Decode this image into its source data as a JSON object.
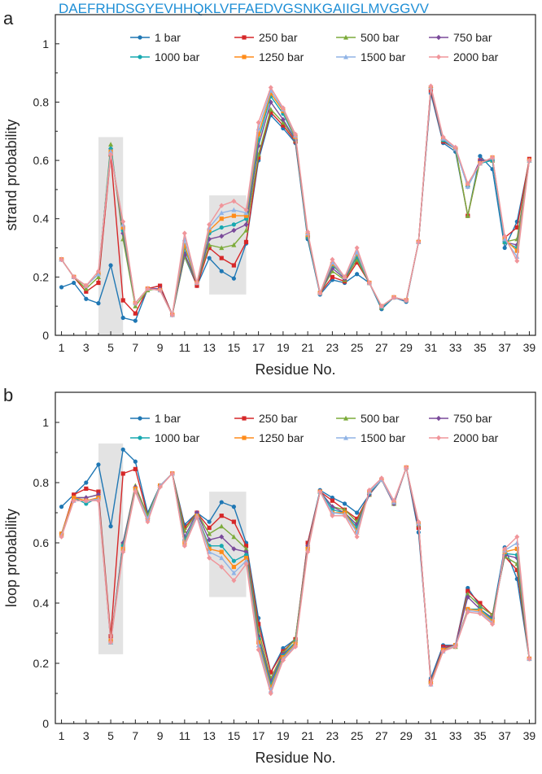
{
  "sequence": "DAEFRHDSGYEVHHQKLVFFAEDVGSNKGAIIGLMVGGVV",
  "colors": {
    "1 bar": "#1f77b4",
    "250 bar": "#d62728",
    "500 bar": "#7cab3a",
    "750 bar": "#7a4a9a",
    "1000 bar": "#17a9b0",
    "1250 bar": "#ff8c1a",
    "1500 bar": "#90b4e6",
    "2000 bar": "#f0959a"
  },
  "chart_data": [
    {
      "panel_label": "a",
      "type": "line",
      "ylabel": "strand probability",
      "xlabel": "Residue No.",
      "ylim": [
        0,
        1.1
      ],
      "yticks": [
        "0",
        "0.2",
        "0.4",
        "0.6",
        "0.8",
        "1"
      ],
      "yticks_values": [
        0,
        0.2,
        0.4,
        0.6,
        0.8,
        1.0
      ],
      "xticks": [
        "1",
        "3",
        "5",
        "7",
        "9",
        "11",
        "13",
        "15",
        "17",
        "19",
        "21",
        "23",
        "25",
        "27",
        "29",
        "31",
        "33",
        "35",
        "37",
        "39"
      ],
      "highlight_ranges": [
        {
          "x": [
            4,
            6
          ],
          "y": [
            0,
            0.68
          ]
        },
        {
          "x": [
            13,
            16
          ],
          "y": [
            0.14,
            0.48
          ]
        }
      ],
      "x": [
        1,
        2,
        3,
        4,
        5,
        6,
        7,
        8,
        9,
        10,
        11,
        12,
        13,
        14,
        15,
        16,
        17,
        18,
        19,
        20,
        21,
        22,
        23,
        24,
        25,
        26,
        27,
        28,
        29,
        30,
        31,
        32,
        33,
        34,
        35,
        36,
        37,
        38,
        39
      ],
      "series": [
        {
          "name": "1 bar",
          "values": [
            0.165,
            0.18,
            0.125,
            0.11,
            0.24,
            0.06,
            0.05,
            0.16,
            0.17,
            0.07,
            0.27,
            0.17,
            0.265,
            0.22,
            0.195,
            0.315,
            0.6,
            0.755,
            0.71,
            0.66,
            0.33,
            0.14,
            0.19,
            0.18,
            0.21,
            0.18,
            0.09,
            0.13,
            0.115,
            0.32,
            0.83,
            0.66,
            0.63,
            0.41,
            0.615,
            0.57,
            0.3,
            0.39,
            0.6
          ]
        },
        {
          "name": "250 bar",
          "values": [
            0.26,
            0.2,
            0.15,
            0.18,
            0.62,
            0.12,
            0.075,
            0.16,
            0.17,
            0.07,
            0.28,
            0.17,
            0.3,
            0.265,
            0.24,
            0.32,
            0.61,
            0.765,
            0.72,
            0.665,
            0.34,
            0.145,
            0.2,
            0.185,
            0.25,
            0.18,
            0.095,
            0.13,
            0.12,
            0.32,
            0.84,
            0.665,
            0.64,
            0.41,
            0.6,
            0.6,
            0.335,
            0.37,
            0.605
          ]
        },
        {
          "name": "500 bar",
          "values": [
            0.26,
            0.2,
            0.16,
            0.2,
            0.655,
            0.33,
            0.1,
            0.155,
            0.16,
            0.07,
            0.27,
            0.18,
            0.31,
            0.3,
            0.31,
            0.36,
            0.62,
            0.775,
            0.73,
            0.67,
            0.34,
            0.145,
            0.22,
            0.19,
            0.26,
            0.18,
            0.095,
            0.13,
            0.12,
            0.32,
            0.85,
            0.67,
            0.64,
            0.41,
            0.6,
            0.6,
            0.32,
            0.33,
            0.6
          ]
        },
        {
          "name": "750 bar",
          "values": [
            0.26,
            0.2,
            0.17,
            0.21,
            0.64,
            0.35,
            0.11,
            0.16,
            0.16,
            0.07,
            0.28,
            0.18,
            0.33,
            0.34,
            0.36,
            0.38,
            0.65,
            0.8,
            0.74,
            0.67,
            0.34,
            0.145,
            0.23,
            0.195,
            0.27,
            0.18,
            0.095,
            0.13,
            0.12,
            0.32,
            0.85,
            0.67,
            0.64,
            0.51,
            0.6,
            0.6,
            0.32,
            0.31,
            0.6
          ]
        },
        {
          "name": "1000 bar",
          "values": [
            0.26,
            0.2,
            0.17,
            0.21,
            0.64,
            0.36,
            0.11,
            0.16,
            0.155,
            0.07,
            0.3,
            0.18,
            0.35,
            0.37,
            0.38,
            0.4,
            0.67,
            0.82,
            0.76,
            0.675,
            0.34,
            0.145,
            0.24,
            0.2,
            0.27,
            0.18,
            0.095,
            0.13,
            0.12,
            0.32,
            0.85,
            0.67,
            0.64,
            0.51,
            0.59,
            0.6,
            0.32,
            0.3,
            0.6
          ]
        },
        {
          "name": "1250 bar",
          "values": [
            0.26,
            0.2,
            0.17,
            0.21,
            0.63,
            0.37,
            0.11,
            0.16,
            0.155,
            0.07,
            0.31,
            0.18,
            0.36,
            0.4,
            0.41,
            0.41,
            0.69,
            0.83,
            0.77,
            0.68,
            0.345,
            0.145,
            0.245,
            0.2,
            0.28,
            0.18,
            0.1,
            0.13,
            0.12,
            0.32,
            0.85,
            0.675,
            0.64,
            0.52,
            0.59,
            0.61,
            0.33,
            0.29,
            0.6
          ]
        },
        {
          "name": "1500 bar",
          "values": [
            0.26,
            0.2,
            0.17,
            0.21,
            0.63,
            0.38,
            0.11,
            0.16,
            0.155,
            0.07,
            0.33,
            0.18,
            0.37,
            0.42,
            0.43,
            0.42,
            0.71,
            0.84,
            0.775,
            0.685,
            0.35,
            0.145,
            0.25,
            0.2,
            0.285,
            0.18,
            0.1,
            0.13,
            0.12,
            0.32,
            0.85,
            0.675,
            0.64,
            0.51,
            0.59,
            0.61,
            0.33,
            0.27,
            0.6
          ]
        },
        {
          "name": "2000 bar",
          "values": [
            0.26,
            0.2,
            0.17,
            0.22,
            0.62,
            0.39,
            0.11,
            0.16,
            0.155,
            0.07,
            0.35,
            0.18,
            0.38,
            0.445,
            0.46,
            0.43,
            0.73,
            0.85,
            0.78,
            0.69,
            0.355,
            0.145,
            0.26,
            0.2,
            0.3,
            0.18,
            0.1,
            0.13,
            0.12,
            0.32,
            0.855,
            0.68,
            0.645,
            0.52,
            0.59,
            0.61,
            0.34,
            0.255,
            0.6
          ]
        }
      ]
    },
    {
      "panel_label": "b",
      "type": "line",
      "ylabel": "loop probability",
      "xlabel": "Residue No.",
      "ylim": [
        0,
        1.1
      ],
      "yticks": [
        "0",
        "0.2",
        "0.4",
        "0.6",
        "0.8",
        "1"
      ],
      "yticks_values": [
        0,
        0.2,
        0.4,
        0.6,
        0.8,
        1.0
      ],
      "xticks": [
        "1",
        "3",
        "5",
        "7",
        "9",
        "11",
        "13",
        "15",
        "17",
        "19",
        "21",
        "23",
        "25",
        "27",
        "29",
        "31",
        "33",
        "35",
        "37",
        "39"
      ],
      "highlight_ranges": [
        {
          "x": [
            4,
            6
          ],
          "y": [
            0.23,
            0.93
          ]
        },
        {
          "x": [
            13,
            16
          ],
          "y": [
            0.42,
            0.77
          ]
        }
      ],
      "x": [
        1,
        2,
        3,
        4,
        5,
        6,
        7,
        8,
        9,
        10,
        11,
        12,
        13,
        14,
        15,
        16,
        17,
        18,
        19,
        20,
        21,
        22,
        23,
        24,
        25,
        26,
        27,
        28,
        29,
        30,
        31,
        32,
        33,
        34,
        35,
        36,
        37,
        38,
        39
      ],
      "series": [
        {
          "name": "1 bar",
          "values": [
            0.72,
            0.76,
            0.8,
            0.86,
            0.655,
            0.91,
            0.87,
            0.7,
            0.79,
            0.83,
            0.66,
            0.7,
            0.67,
            0.735,
            0.72,
            0.6,
            0.35,
            0.17,
            0.25,
            0.28,
            0.6,
            0.775,
            0.75,
            0.73,
            0.7,
            0.76,
            0.81,
            0.73,
            0.85,
            0.635,
            0.15,
            0.26,
            0.26,
            0.45,
            0.39,
            0.36,
            0.585,
            0.48,
            0.215
          ]
        },
        {
          "name": "250 bar",
          "values": [
            0.63,
            0.76,
            0.78,
            0.77,
            0.29,
            0.83,
            0.845,
            0.69,
            0.79,
            0.83,
            0.65,
            0.7,
            0.65,
            0.69,
            0.67,
            0.59,
            0.33,
            0.17,
            0.24,
            0.28,
            0.6,
            0.77,
            0.74,
            0.71,
            0.68,
            0.76,
            0.81,
            0.73,
            0.85,
            0.65,
            0.14,
            0.255,
            0.26,
            0.44,
            0.4,
            0.36,
            0.555,
            0.51,
            0.215
          ]
        },
        {
          "name": "500 bar",
          "values": [
            0.63,
            0.75,
            0.75,
            0.76,
            0.27,
            0.6,
            0.79,
            0.69,
            0.79,
            0.83,
            0.64,
            0.7,
            0.63,
            0.655,
            0.62,
            0.58,
            0.31,
            0.15,
            0.235,
            0.28,
            0.59,
            0.77,
            0.72,
            0.71,
            0.67,
            0.76,
            0.81,
            0.73,
            0.85,
            0.66,
            0.14,
            0.25,
            0.255,
            0.43,
            0.39,
            0.36,
            0.555,
            0.53,
            0.215
          ]
        },
        {
          "name": "750 bar",
          "values": [
            0.63,
            0.75,
            0.75,
            0.76,
            0.275,
            0.6,
            0.785,
            0.68,
            0.79,
            0.83,
            0.62,
            0.7,
            0.61,
            0.62,
            0.58,
            0.57,
            0.29,
            0.14,
            0.23,
            0.27,
            0.59,
            0.77,
            0.72,
            0.7,
            0.66,
            0.76,
            0.81,
            0.73,
            0.85,
            0.66,
            0.14,
            0.25,
            0.26,
            0.42,
            0.38,
            0.35,
            0.56,
            0.55,
            0.215
          ]
        },
        {
          "name": "1000 bar",
          "values": [
            0.63,
            0.75,
            0.73,
            0.75,
            0.27,
            0.59,
            0.78,
            0.68,
            0.79,
            0.83,
            0.61,
            0.69,
            0.59,
            0.59,
            0.54,
            0.56,
            0.28,
            0.13,
            0.225,
            0.27,
            0.58,
            0.77,
            0.71,
            0.7,
            0.65,
            0.765,
            0.81,
            0.735,
            0.85,
            0.665,
            0.135,
            0.245,
            0.26,
            0.38,
            0.38,
            0.345,
            0.565,
            0.56,
            0.215
          ]
        },
        {
          "name": "1250 bar",
          "values": [
            0.63,
            0.75,
            0.74,
            0.75,
            0.275,
            0.58,
            0.78,
            0.68,
            0.79,
            0.83,
            0.6,
            0.69,
            0.58,
            0.57,
            0.52,
            0.55,
            0.27,
            0.12,
            0.22,
            0.265,
            0.58,
            0.77,
            0.7,
            0.7,
            0.64,
            0.77,
            0.81,
            0.735,
            0.85,
            0.665,
            0.135,
            0.245,
            0.26,
            0.38,
            0.375,
            0.34,
            0.57,
            0.58,
            0.215
          ]
        },
        {
          "name": "1500 bar",
          "values": [
            0.625,
            0.74,
            0.74,
            0.745,
            0.27,
            0.575,
            0.775,
            0.68,
            0.79,
            0.83,
            0.595,
            0.69,
            0.57,
            0.55,
            0.5,
            0.54,
            0.26,
            0.11,
            0.215,
            0.26,
            0.575,
            0.77,
            0.7,
            0.695,
            0.635,
            0.77,
            0.81,
            0.735,
            0.85,
            0.665,
            0.13,
            0.24,
            0.26,
            0.375,
            0.37,
            0.335,
            0.575,
            0.6,
            0.215
          ]
        },
        {
          "name": "2000 bar",
          "values": [
            0.62,
            0.74,
            0.74,
            0.74,
            0.27,
            0.57,
            0.77,
            0.67,
            0.785,
            0.83,
            0.59,
            0.685,
            0.55,
            0.52,
            0.475,
            0.53,
            0.245,
            0.1,
            0.21,
            0.255,
            0.57,
            0.77,
            0.69,
            0.69,
            0.62,
            0.775,
            0.815,
            0.74,
            0.85,
            0.67,
            0.13,
            0.24,
            0.255,
            0.37,
            0.365,
            0.33,
            0.58,
            0.62,
            0.215
          ]
        }
      ]
    }
  ]
}
